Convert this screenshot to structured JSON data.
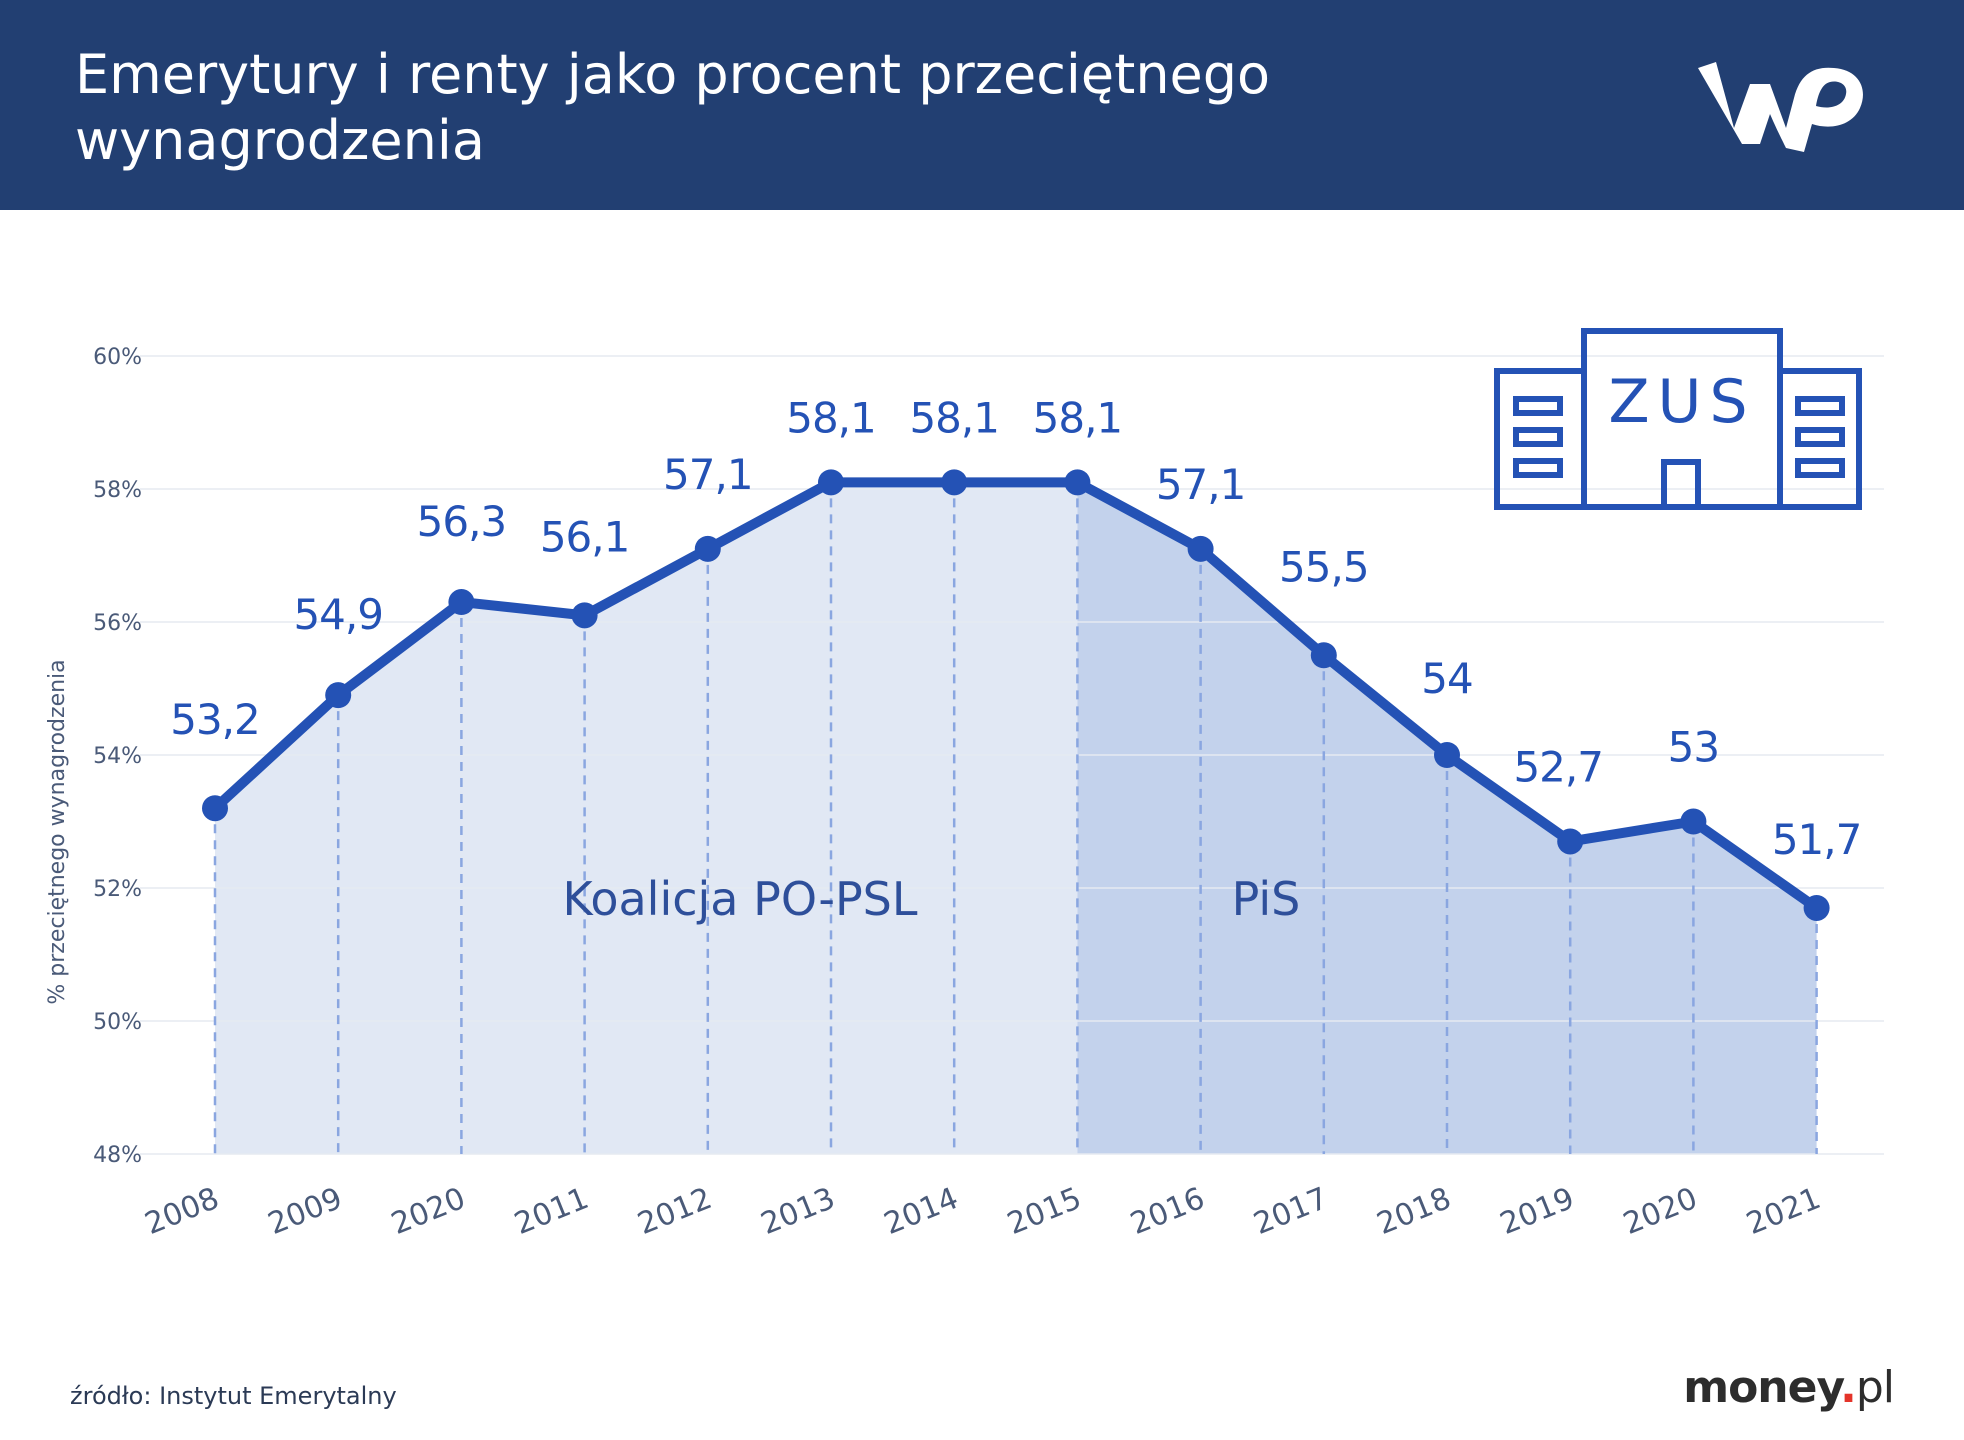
{
  "header": {
    "title": "Emerytury i renty jako procent przeciętnego wynagrodzenia",
    "logo_icon": "wp-logo",
    "background": "#223f72"
  },
  "icon": {
    "name": "zus-building-icon",
    "label": "ZUS"
  },
  "footer": {
    "source": "źródło: Instytut Emerytalny",
    "brand_name": "money",
    "brand_dot": ".",
    "brand_tld": "pl"
  },
  "chart_data": {
    "type": "line",
    "title": "Emerytury i renty jako procent przeciętnego wynagrodzenia",
    "ylabel": "% przeciętnego wynagrodzenia",
    "xlabel": "",
    "categories": [
      "2008",
      "2009",
      "2020",
      "2011",
      "2012",
      "2013",
      "2014",
      "2015",
      "2016",
      "2017",
      "2018",
      "2019",
      "2020",
      "2021"
    ],
    "values": [
      53.2,
      54.9,
      56.3,
      56.1,
      57.1,
      58.1,
      58.1,
      58.1,
      57.1,
      55.5,
      54.0,
      52.7,
      53.0,
      51.7
    ],
    "value_labels": [
      "53,2",
      "54,9",
      "56,3",
      "56,1",
      "57,1",
      "58,1",
      "58,1",
      "58,1",
      "57,1",
      "55,5",
      "54",
      "52,7",
      "53",
      "51,7"
    ],
    "ylim": [
      48,
      60
    ],
    "yticks": [
      48,
      50,
      52,
      54,
      56,
      58,
      60
    ],
    "ytick_labels": [
      "48%",
      "50%",
      "52%",
      "54%",
      "56%",
      "58%",
      "60%"
    ],
    "grid": true,
    "regions": [
      {
        "label": "Koalicja PO-PSL",
        "from_index": 0,
        "to_index": 7,
        "color": "#e1e8f4"
      },
      {
        "label": "PiS",
        "from_index": 7,
        "to_index": 13,
        "color": "#c3d2ec"
      }
    ],
    "colors": {
      "line": "#2452b5",
      "label": "#2452b5",
      "region_text": "#2e4f9a",
      "axis_text": "#4a5a78"
    }
  }
}
